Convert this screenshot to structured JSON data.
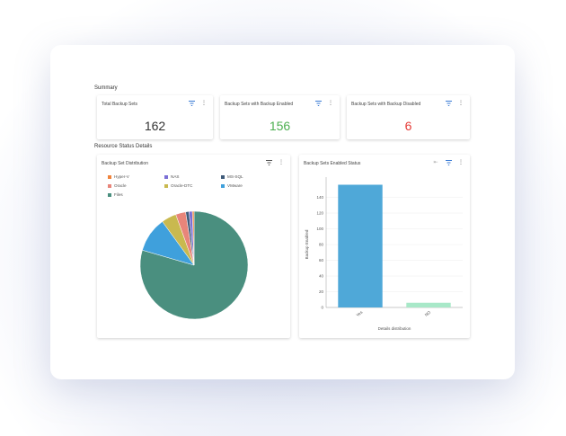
{
  "summary": {
    "title": "Summary",
    "cards": [
      {
        "title": "Total Backup Sets",
        "value": "162",
        "color": "#333333"
      },
      {
        "title": "Backup Sets with Backup Enabled",
        "value": "156",
        "color": "#4caf50"
      },
      {
        "title": "Backup Sets with Backup Disabled",
        "value": "6",
        "color": "#e53935"
      }
    ]
  },
  "resource": {
    "title": "Resource Status Details"
  },
  "pie_card": {
    "title": "Backup Set Distribution",
    "legend": [
      {
        "label": "Hyper-V",
        "color": "#f0843c"
      },
      {
        "label": "NAS",
        "color": "#7b6fd6"
      },
      {
        "label": "MS-SQL",
        "color": "#3f5b7a"
      },
      {
        "label": "Oracle",
        "color": "#e8857a"
      },
      {
        "label": "Oracle-DTC",
        "color": "#c9b94f"
      },
      {
        "label": "VMware",
        "color": "#3fa0dc"
      },
      {
        "label": "Files",
        "color": "#4a8f7f"
      }
    ]
  },
  "bar_card": {
    "title": "Backup Sets Enabled Status"
  },
  "chart_data": [
    {
      "type": "pie",
      "title": "Backup Set Distribution",
      "slices": [
        {
          "label": "Files",
          "value": 79.5,
          "color": "#4a8f7f"
        },
        {
          "label": "VMware",
          "value": 10.5,
          "color": "#3fa0dc"
        },
        {
          "label": "Oracle-DTC",
          "value": 4.5,
          "color": "#c9b94f"
        },
        {
          "label": "Oracle",
          "value": 3,
          "color": "#e8857a"
        },
        {
          "label": "MS-SQL",
          "value": 1,
          "color": "#3f5b7a"
        },
        {
          "label": "NAS",
          "value": 1,
          "color": "#7b6fd6"
        },
        {
          "label": "Hyper-V",
          "value": 0.5,
          "color": "#f0843c"
        }
      ]
    },
    {
      "type": "bar",
      "title": "Backup Sets Enabled Status",
      "categories": [
        "Yes",
        "NO"
      ],
      "values": [
        156,
        6
      ],
      "colors": [
        "#4fa8d8",
        "#a8e8c8"
      ],
      "xlabel": "Details distribution",
      "ylabel": "Backup Enabled",
      "ylim": [
        0,
        160
      ],
      "yticks": [
        0,
        20,
        40,
        60,
        80,
        100,
        120,
        140
      ]
    }
  ]
}
